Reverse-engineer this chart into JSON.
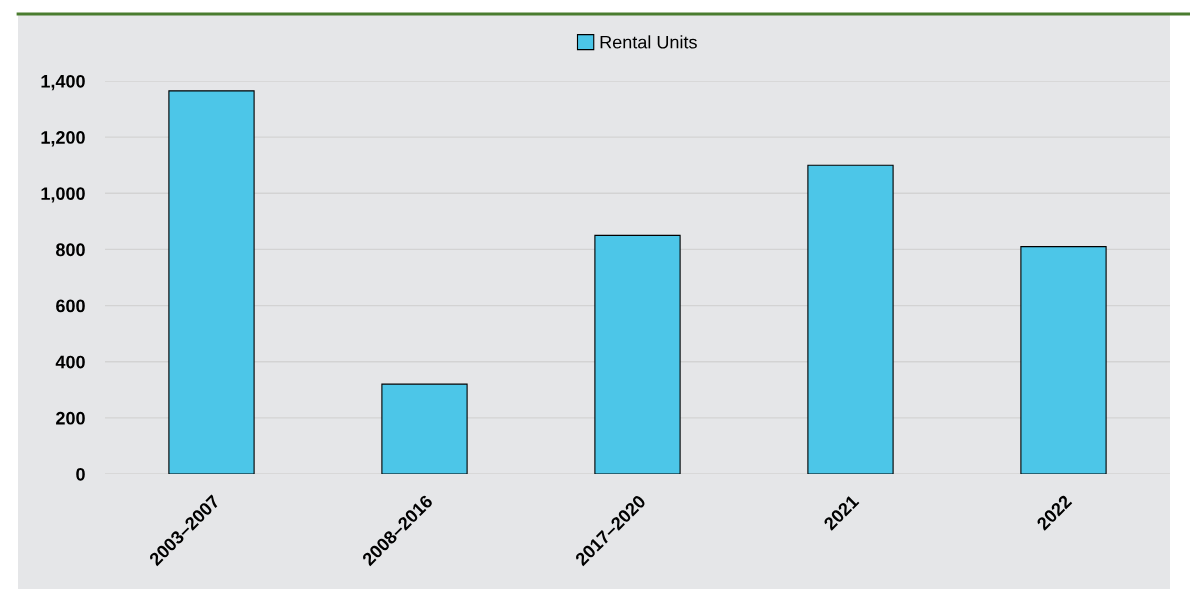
{
  "chart_data": {
    "type": "bar",
    "categories": [
      "2003–2007",
      "2008–2016",
      "2017–2020",
      "2021",
      "2022"
    ],
    "series": [
      {
        "name": "Rental Units",
        "color": "#4cc6e8",
        "values": [
          1365,
          320,
          850,
          1100,
          810
        ]
      }
    ],
    "ylim": [
      0,
      1400
    ],
    "yticks": [
      0,
      200,
      400,
      600,
      800,
      {
        "value": 1000,
        "label": "1,000"
      },
      {
        "value": 1200,
        "label": "1,200"
      },
      {
        "value": 1400,
        "label": "1,400"
      }
    ],
    "grid": "y",
    "legend": "top"
  }
}
